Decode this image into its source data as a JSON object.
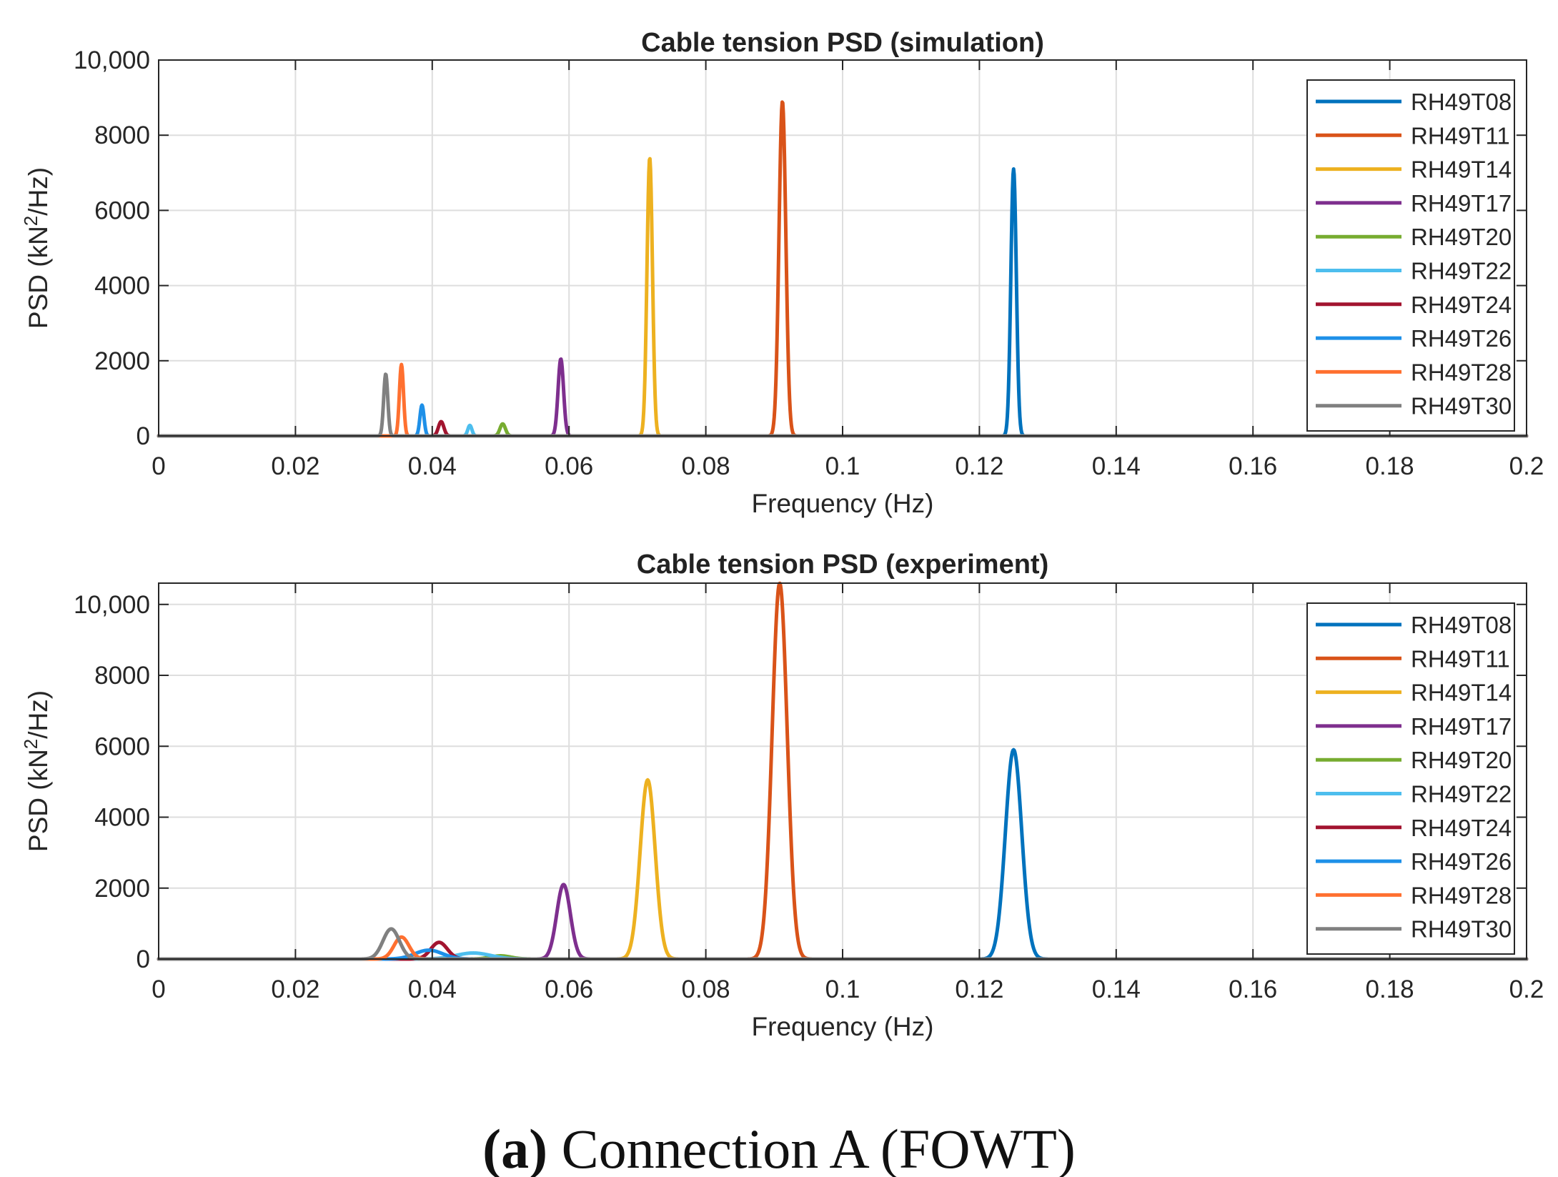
{
  "chart_data": [
    {
      "type": "line",
      "title": "Cable tension PSD (simulation)",
      "xlabel": "Frequency (Hz)",
      "ylabel_main": "PSD (kN",
      "ylabel_sup": "2",
      "ylabel_tail": "/Hz)",
      "xlim": [
        0,
        0.2
      ],
      "ylim": [
        0,
        10000
      ],
      "xticks": [
        0,
        0.02,
        0.04,
        0.06,
        0.08,
        0.1,
        0.12,
        0.14,
        0.16,
        0.18,
        0.2
      ],
      "xtick_labels": [
        "0",
        "0.02",
        "0.04",
        "0.06",
        "0.08",
        "0.1",
        "0.12",
        "0.14",
        "0.16",
        "0.18",
        "0.2"
      ],
      "yticks": [
        0,
        2000,
        4000,
        6000,
        8000,
        10000
      ],
      "ytick_labels": [
        "0",
        "2000",
        "4000",
        "6000",
        "8000",
        "10,000"
      ],
      "grid": true,
      "legend_position": "top-right",
      "series": [
        {
          "name": "RH49T08",
          "color": "#0072BD",
          "peaks": [
            {
              "f": 0.125,
              "v": 7100
            }
          ],
          "width": 0.0004
        },
        {
          "name": "RH49T11",
          "color": "#D95319",
          "peaks": [
            {
              "f": 0.0912,
              "v": 8900
            }
          ],
          "width": 0.0005
        },
        {
          "name": "RH49T14",
          "color": "#EDB120",
          "peaks": [
            {
              "f": 0.0718,
              "v": 7400
            }
          ],
          "width": 0.0004
        },
        {
          "name": "RH49T17",
          "color": "#7E2F8E",
          "peaks": [
            {
              "f": 0.0588,
              "v": 2050
            }
          ],
          "width": 0.0004
        },
        {
          "name": "RH49T20",
          "color": "#77AC30",
          "peaks": [
            {
              "f": 0.0503,
              "v": 320
            }
          ],
          "width": 0.0004
        },
        {
          "name": "RH49T22",
          "color": "#4DBEEE",
          "peaks": [
            {
              "f": 0.0455,
              "v": 280
            }
          ],
          "width": 0.0003
        },
        {
          "name": "RH49T24",
          "color": "#A2142F",
          "peaks": [
            {
              "f": 0.0413,
              "v": 380
            }
          ],
          "width": 0.0004
        },
        {
          "name": "RH49T26",
          "color": "#1E90E8",
          "peaks": [
            {
              "f": 0.0385,
              "v": 820
            }
          ],
          "width": 0.0003
        },
        {
          "name": "RH49T28",
          "color": "#FF7030",
          "peaks": [
            {
              "f": 0.0355,
              "v": 1900
            }
          ],
          "width": 0.0003
        },
        {
          "name": "RH49T30",
          "color": "#808080",
          "peaks": [
            {
              "f": 0.0332,
              "v": 1650
            }
          ],
          "width": 0.0003
        }
      ]
    },
    {
      "type": "line",
      "title": "Cable tension PSD (experiment)",
      "xlabel": "Frequency (Hz)",
      "ylabel_main": "PSD (kN",
      "ylabel_sup": "2",
      "ylabel_tail": "/Hz)",
      "xlim": [
        0,
        0.2
      ],
      "ylim": [
        0,
        10600
      ],
      "xticks": [
        0,
        0.02,
        0.04,
        0.06,
        0.08,
        0.1,
        0.12,
        0.14,
        0.16,
        0.18,
        0.2
      ],
      "xtick_labels": [
        "0",
        "0.02",
        "0.04",
        "0.06",
        "0.08",
        "0.1",
        "0.12",
        "0.14",
        "0.16",
        "0.18",
        "0.2"
      ],
      "yticks": [
        0,
        2000,
        4000,
        6000,
        8000,
        10000
      ],
      "ytick_labels": [
        "0",
        "2000",
        "4000",
        "6000",
        "8000",
        "10,000"
      ],
      "grid": true,
      "legend_position": "top-right",
      "series": [
        {
          "name": "RH49T08",
          "color": "#0072BD",
          "peaks": [
            {
              "f": 0.125,
              "v": 5900
            }
          ],
          "width": 0.0012
        },
        {
          "name": "RH49T11",
          "color": "#D95319",
          "peaks": [
            {
              "f": 0.0908,
              "v": 10600
            }
          ],
          "width": 0.0011
        },
        {
          "name": "RH49T14",
          "color": "#EDB120",
          "peaks": [
            {
              "f": 0.0715,
              "v": 5050
            }
          ],
          "width": 0.0011
        },
        {
          "name": "RH49T17",
          "color": "#7E2F8E",
          "peaks": [
            {
              "f": 0.0592,
              "v": 2100
            }
          ],
          "width": 0.001
        },
        {
          "name": "RH49T20",
          "color": "#77AC30",
          "peaks": [
            {
              "f": 0.05,
              "v": 90
            }
          ],
          "width": 0.0015
        },
        {
          "name": "RH49T22",
          "color": "#4DBEEE",
          "peaks": [
            {
              "f": 0.046,
              "v": 170
            }
          ],
          "width": 0.0025
        },
        {
          "name": "RH49T24",
          "color": "#A2142F",
          "peaks": [
            {
              "f": 0.041,
              "v": 470
            }
          ],
          "width": 0.0012
        },
        {
          "name": "RH49T26",
          "color": "#1E90E8",
          "peaks": [
            {
              "f": 0.0395,
              "v": 250
            }
          ],
          "width": 0.002
        },
        {
          "name": "RH49T28",
          "color": "#FF7030",
          "peaks": [
            {
              "f": 0.0355,
              "v": 620
            }
          ],
          "width": 0.0011
        },
        {
          "name": "RH49T30",
          "color": "#808080",
          "peaks": [
            {
              "f": 0.034,
              "v": 850
            }
          ],
          "width": 0.0012
        }
      ]
    }
  ],
  "caption": {
    "label": "(a)",
    "text": " Connection A (FOWT)"
  }
}
